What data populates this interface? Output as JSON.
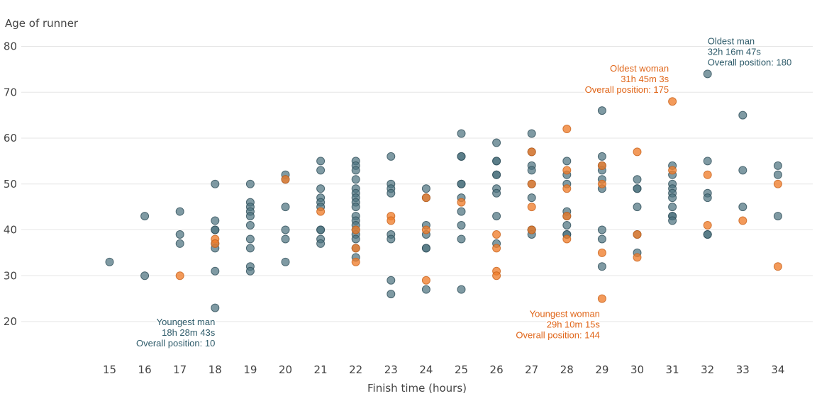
{
  "chart_data": {
    "type": "scatter",
    "title": "",
    "xlabel": "Finish time (hours)",
    "ylabel": "Age of runner",
    "xlim": [
      14.5,
      35
    ],
    "ylim": [
      15,
      82
    ],
    "x_ticks": [
      15,
      16,
      17,
      18,
      19,
      20,
      21,
      22,
      23,
      24,
      25,
      26,
      27,
      28,
      29,
      30,
      31,
      32,
      33,
      34
    ],
    "y_ticks": [
      20,
      30,
      40,
      50,
      60,
      70,
      80
    ],
    "grid": "horizontal",
    "colors": {
      "men": "#4d7380",
      "women": "#ef7d2c",
      "men_text": "#2e5b6a",
      "women_text": "#e0661a"
    },
    "series": [
      {
        "group": "men",
        "points": [
          [
            15,
            33
          ],
          [
            16,
            43
          ],
          [
            16,
            30
          ],
          [
            17,
            44
          ],
          [
            17,
            39
          ],
          [
            17,
            37
          ],
          [
            18,
            50
          ],
          [
            18,
            42
          ],
          [
            18,
            40
          ],
          [
            18,
            40
          ],
          [
            18,
            37
          ],
          [
            18,
            36
          ],
          [
            18,
            31
          ],
          [
            18,
            23
          ],
          [
            19,
            50
          ],
          [
            19,
            46
          ],
          [
            19,
            45
          ],
          [
            19,
            44
          ],
          [
            19,
            43
          ],
          [
            19,
            41
          ],
          [
            19,
            38
          ],
          [
            19,
            36
          ],
          [
            19,
            32
          ],
          [
            19,
            31
          ],
          [
            20,
            52
          ],
          [
            20,
            51
          ],
          [
            20,
            45
          ],
          [
            20,
            40
          ],
          [
            20,
            38
          ],
          [
            20,
            33
          ],
          [
            21,
            55
          ],
          [
            21,
            53
          ],
          [
            21,
            49
          ],
          [
            21,
            47
          ],
          [
            21,
            46
          ],
          [
            21,
            45
          ],
          [
            21,
            40
          ],
          [
            21,
            40
          ],
          [
            21,
            38
          ],
          [
            21,
            37
          ],
          [
            22,
            55
          ],
          [
            22,
            54
          ],
          [
            22,
            53
          ],
          [
            22,
            51
          ],
          [
            22,
            49
          ],
          [
            22,
            48
          ],
          [
            22,
            47
          ],
          [
            22,
            46
          ],
          [
            22,
            45
          ],
          [
            22,
            43
          ],
          [
            22,
            42
          ],
          [
            22,
            41
          ],
          [
            22,
            40
          ],
          [
            22,
            39
          ],
          [
            22,
            38
          ],
          [
            22,
            36
          ],
          [
            22,
            34
          ],
          [
            23,
            56
          ],
          [
            23,
            50
          ],
          [
            23,
            49
          ],
          [
            23,
            48
          ],
          [
            23,
            39
          ],
          [
            23,
            38
          ],
          [
            23,
            29
          ],
          [
            23,
            26
          ],
          [
            24,
            49
          ],
          [
            24,
            47
          ],
          [
            24,
            41
          ],
          [
            24,
            39
          ],
          [
            24,
            36
          ],
          [
            24,
            36
          ],
          [
            24,
            27
          ],
          [
            25,
            61
          ],
          [
            25,
            56
          ],
          [
            25,
            56
          ],
          [
            25,
            50
          ],
          [
            25,
            50
          ],
          [
            25,
            47
          ],
          [
            25,
            44
          ],
          [
            25,
            41
          ],
          [
            25,
            38
          ],
          [
            25,
            27
          ],
          [
            26,
            59
          ],
          [
            26,
            55
          ],
          [
            26,
            55
          ],
          [
            26,
            52
          ],
          [
            26,
            52
          ],
          [
            26,
            49
          ],
          [
            26,
            48
          ],
          [
            26,
            43
          ],
          [
            26,
            37
          ],
          [
            27,
            61
          ],
          [
            27,
            57
          ],
          [
            27,
            54
          ],
          [
            27,
            53
          ],
          [
            27,
            50
          ],
          [
            27,
            47
          ],
          [
            27,
            40
          ],
          [
            27,
            40
          ],
          [
            27,
            39
          ],
          [
            28,
            55
          ],
          [
            28,
            52
          ],
          [
            28,
            50
          ],
          [
            28,
            44
          ],
          [
            28,
            43
          ],
          [
            28,
            41
          ],
          [
            28,
            39
          ],
          [
            28,
            39
          ],
          [
            29,
            66
          ],
          [
            29,
            56
          ],
          [
            29,
            54
          ],
          [
            29,
            53
          ],
          [
            29,
            51
          ],
          [
            29,
            49
          ],
          [
            29,
            40
          ],
          [
            29,
            38
          ],
          [
            29,
            32
          ],
          [
            30,
            51
          ],
          [
            30,
            49
          ],
          [
            30,
            49
          ],
          [
            30,
            45
          ],
          [
            30,
            39
          ],
          [
            30,
            35
          ],
          [
            31,
            54
          ],
          [
            31,
            52
          ],
          [
            31,
            50
          ],
          [
            31,
            49
          ],
          [
            31,
            48
          ],
          [
            31,
            47
          ],
          [
            31,
            45
          ],
          [
            31,
            43
          ],
          [
            31,
            43
          ],
          [
            31,
            42
          ],
          [
            32,
            74
          ],
          [
            32,
            55
          ],
          [
            32,
            48
          ],
          [
            32,
            47
          ],
          [
            32,
            39
          ],
          [
            32,
            39
          ],
          [
            33,
            65
          ],
          [
            33,
            53
          ],
          [
            33,
            45
          ],
          [
            34,
            54
          ],
          [
            34,
            52
          ],
          [
            34,
            43
          ]
        ]
      },
      {
        "group": "women",
        "points": [
          [
            17,
            30
          ],
          [
            18,
            38
          ],
          [
            18,
            37
          ],
          [
            20,
            51
          ],
          [
            21,
            44
          ],
          [
            22,
            40
          ],
          [
            22,
            36
          ],
          [
            22,
            33
          ],
          [
            23,
            43
          ],
          [
            23,
            42
          ],
          [
            24,
            47
          ],
          [
            24,
            40
          ],
          [
            24,
            29
          ],
          [
            25,
            46
          ],
          [
            26,
            39
          ],
          [
            26,
            36
          ],
          [
            26,
            31
          ],
          [
            26,
            30
          ],
          [
            27,
            57
          ],
          [
            27,
            50
          ],
          [
            27,
            45
          ],
          [
            27,
            40
          ],
          [
            28,
            62
          ],
          [
            28,
            53
          ],
          [
            28,
            49
          ],
          [
            28,
            43
          ],
          [
            28,
            38
          ],
          [
            29,
            54
          ],
          [
            29,
            50
          ],
          [
            29,
            35
          ],
          [
            29,
            25
          ],
          [
            30,
            57
          ],
          [
            30,
            39
          ],
          [
            30,
            34
          ],
          [
            31,
            68
          ],
          [
            31,
            53
          ],
          [
            32,
            52
          ],
          [
            32,
            41
          ],
          [
            33,
            42
          ],
          [
            34,
            50
          ],
          [
            34,
            32
          ]
        ]
      }
    ],
    "annotations": [
      {
        "group": "men",
        "align": "start",
        "x": 32,
        "y": 80.5,
        "lines": [
          "Oldest man",
          "32h 16m 47s",
          "Overall position: 180"
        ]
      },
      {
        "group": "women",
        "align": "end",
        "x": 30.9,
        "y": 74.5,
        "lines": [
          "Oldest woman",
          "31h 45m 3s",
          "Overall position: 175"
        ]
      },
      {
        "group": "men",
        "align": "end",
        "x": 18,
        "y": 19.2,
        "lines": [
          "Youngest man",
          "18h 28m 43s",
          "Overall position: 10"
        ]
      },
      {
        "group": "women",
        "align": "end",
        "x": 28.94,
        "y": 21.0,
        "lines": [
          "Youngest woman",
          "29h 10m 15s",
          "Overall position: 144"
        ]
      }
    ]
  }
}
